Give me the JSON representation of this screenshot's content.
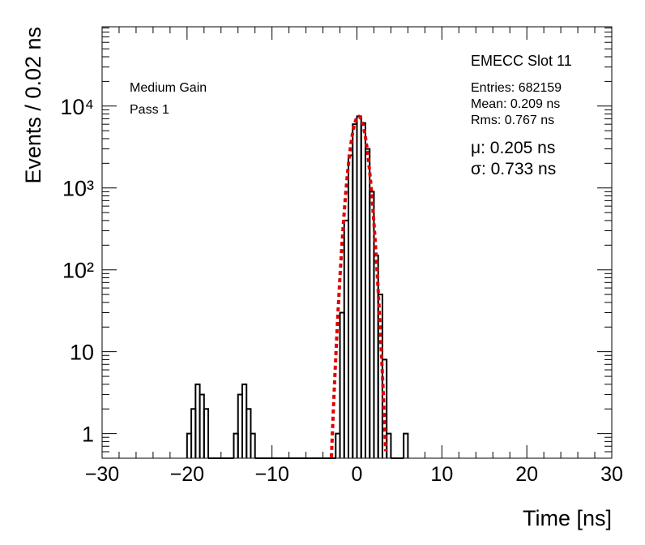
{
  "chart_data": {
    "type": "histogram",
    "log_y": true,
    "xlabel": "Time [ns]",
    "ylabel": "Events / 0.02 ns",
    "bins": [
      -20,
      -19.5,
      -19,
      -18.5,
      -18,
      -17.5,
      -17,
      -16.5,
      -16,
      -15.5,
      -15,
      -14.5,
      -14,
      -13.5,
      -13,
      -12.5,
      -12,
      -11.5,
      -11,
      -10.5,
      -10,
      -9.5,
      -9,
      -8.5,
      -8,
      -7.5,
      -7,
      -6.5,
      -6,
      -5.5,
      -5,
      -4.5,
      -4,
      -3.5,
      -3,
      -2.5,
      -2,
      -1.5,
      -1,
      -0.5,
      0,
      0.5,
      1,
      1.5,
      2,
      2.5,
      3,
      3.5,
      4,
      4.5,
      5,
      5.5,
      6
    ],
    "values": [
      1,
      2,
      4,
      3,
      2,
      0,
      0,
      0,
      0,
      0,
      0,
      1,
      3,
      4,
      2,
      1,
      0,
      0,
      0,
      0,
      0,
      0,
      0,
      0,
      0,
      0,
      0,
      0,
      0,
      0,
      0,
      0,
      0,
      0,
      0,
      1,
      30,
      400,
      2500,
      6000,
      7500,
      6200,
      3000,
      900,
      150,
      50,
      8,
      1,
      0,
      0,
      0,
      1
    ],
    "color": "#000000",
    "fit": {
      "mu": 0.205,
      "sigma": 0.733,
      "amplitude": 7500,
      "color": "#e00000",
      "value_labels": {
        "mu": "μ: 0.205 ns",
        "sigma": "σ: 0.733 ns"
      }
    },
    "xlim": [
      -30,
      30
    ],
    "xticks": [
      {
        "value": -30,
        "label": "−30"
      },
      {
        "value": -20,
        "label": "−20"
      },
      {
        "value": -10,
        "label": "−10"
      },
      0,
      10,
      20,
      30
    ],
    "ylim": [
      0.5,
      93000
    ],
    "yticks": [
      1,
      10,
      {
        "value": 100,
        "label": "10²"
      },
      {
        "value": 1000,
        "label": "10³"
      },
      {
        "value": 10000,
        "label": "10⁴"
      }
    ],
    "annotations": [
      "Medium Gain",
      "Pass 1",
      "EMECC Slot 11",
      "Entries: 682159",
      "Mean: 0.209 ns",
      "Rms: 0.767 ns"
    ]
  }
}
